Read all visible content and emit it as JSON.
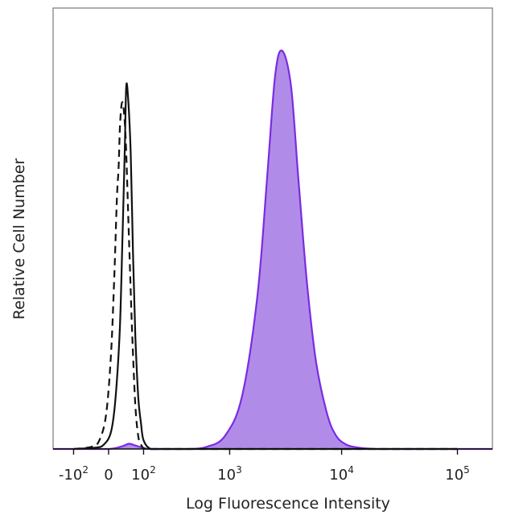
{
  "chart_data": {
    "type": "area",
    "title": "",
    "xlabel": "Log Fluorescence Intensity",
    "ylabel": "Relative Cell Number",
    "x_scale": "biexponential",
    "xlim": [
      -200,
      200000
    ],
    "ylim": [
      0,
      100
    ],
    "grid": false,
    "legend": "none",
    "x_ticks": [
      {
        "value": -100,
        "base": "-10",
        "exp": "2"
      },
      {
        "value": 0,
        "base": "0",
        "exp": ""
      },
      {
        "value": 100,
        "base": "10",
        "exp": "2"
      },
      {
        "value": 1000,
        "base": "10",
        "exp": "3"
      },
      {
        "value": 10000,
        "base": "10",
        "exp": "4"
      },
      {
        "value": 100000,
        "base": "10",
        "exp": "5"
      }
    ],
    "series": [
      {
        "style": "dashed",
        "color": "#111111",
        "fill": "none",
        "x": [
          -100,
          -40,
          -20,
          -5,
          5,
          12,
          18,
          22,
          26,
          32,
          40,
          50,
          60,
          70,
          80,
          90,
          110,
          200,
          1000,
          10000,
          100000
        ],
        "y": [
          0,
          0.5,
          2,
          8,
          22,
          40,
          58,
          65,
          76,
          80,
          72,
          48,
          26,
          10,
          3,
          1,
          0,
          0,
          0,
          0,
          0
        ]
      },
      {
        "style": "solid",
        "color": "#111111",
        "fill": "none",
        "x": [
          -100,
          -30,
          -10,
          5,
          15,
          25,
          32,
          38,
          42,
          48,
          55,
          62,
          70,
          80,
          90,
          100,
          130,
          200,
          1000,
          10000,
          100000
        ],
        "y": [
          0,
          0.3,
          1,
          4,
          12,
          28,
          50,
          70,
          84,
          80,
          68,
          46,
          26,
          12,
          6,
          2,
          0,
          0,
          0,
          0,
          0
        ]
      },
      {
        "style": "solid",
        "color": "#7b2be2",
        "fill": "#b08ce8",
        "x": [
          -200,
          -100,
          0,
          30,
          50,
          70,
          90,
          120,
          200,
          300,
          400,
          600,
          900,
          1300,
          1800,
          2200,
          2600,
          3000,
          3600,
          4200,
          5000,
          6000,
          7500,
          9000,
          11000,
          14000,
          20000,
          50000,
          200000
        ],
        "y": [
          0,
          0,
          0,
          0.6,
          1.2,
          0.8,
          0.4,
          0,
          0,
          0,
          0,
          0.5,
          3,
          12,
          35,
          62,
          86,
          92,
          84,
          62,
          38,
          20,
          8,
          3,
          1,
          0.3,
          0,
          0,
          0
        ]
      }
    ]
  }
}
